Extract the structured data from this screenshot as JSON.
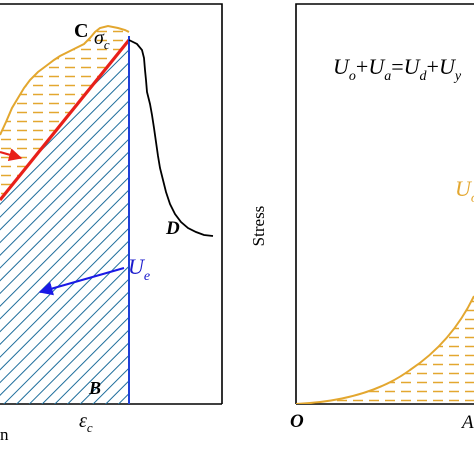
{
  "left_panel": {
    "point_c": "C",
    "sigma_c": "σ",
    "sigma_c_sub": "c",
    "point_d": "D",
    "point_b": "B",
    "ue_symbol": "U",
    "ue_sub": "e",
    "x_label_fragment": "n",
    "eps_c": "ε",
    "eps_c_sub": "c"
  },
  "right_panel": {
    "y_label": "Stress",
    "equation": {
      "u1": "U",
      "s1": "o",
      "op1": "+",
      "u2": "U",
      "s2": "a",
      "op2": "=",
      "u3": "U",
      "s3": "d",
      "op3": "+",
      "u4": "U",
      "s4": "y"
    },
    "uo_symbol": "U",
    "uo_sub": "o",
    "origin": "O",
    "x_tick_fragment": "A"
  },
  "colors": {
    "axis": "#000000",
    "loading_curve": "#e3a72f",
    "elastic_line": "#e8201a",
    "elastic_hatch": "#1f6e9c",
    "unload_line": "#1f3fd6",
    "post_peak": "#000000",
    "ue_arrow": "#1a1ae6",
    "ue_label": "#1a1acc",
    "uo_label": "#e3a72f"
  }
}
